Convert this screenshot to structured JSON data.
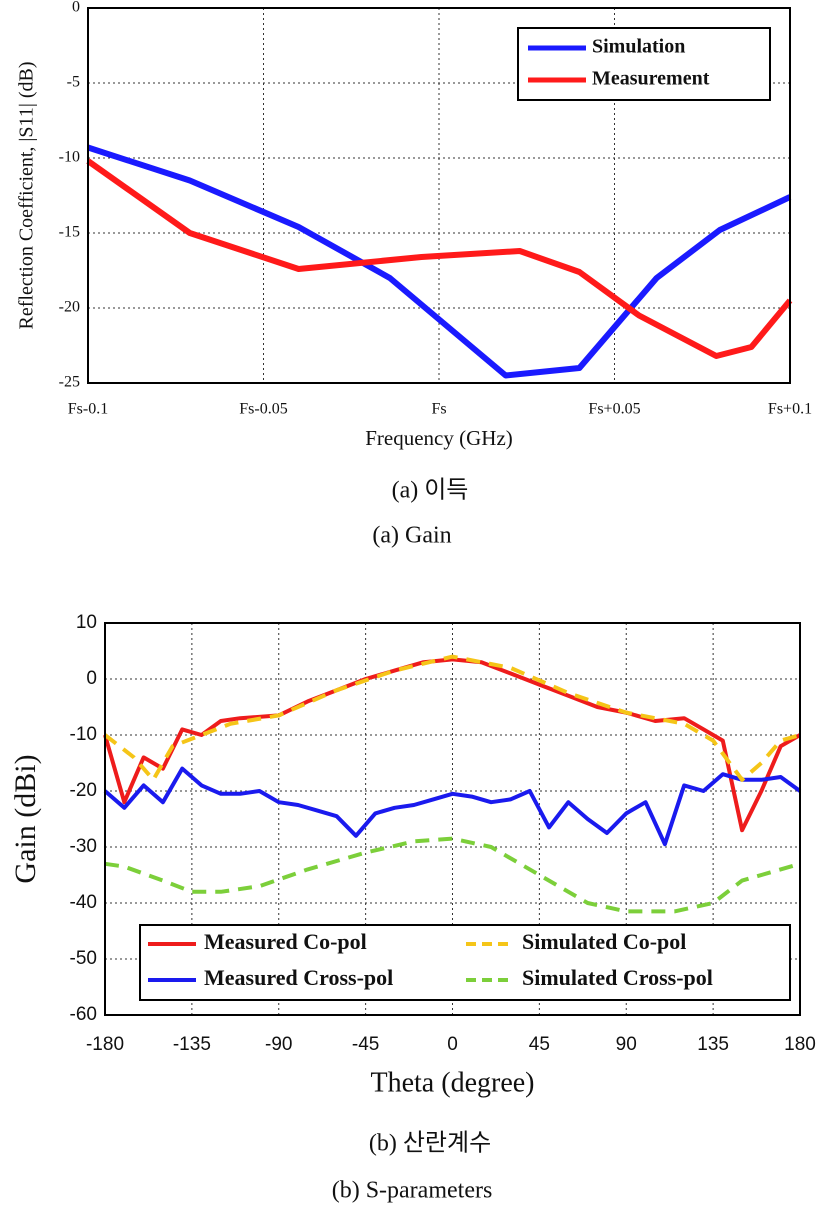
{
  "chart_data": [
    {
      "type": "line",
      "xlabel": "Frequency (GHz)",
      "ylabel": "Reflection Coefficient, |S11| (dB)",
      "xlim": [
        -0.1,
        0.1
      ],
      "xticks": [
        {
          "value": -0.1,
          "label": "Fs-0.1"
        },
        {
          "value": -0.05,
          "label": "Fs-0.05"
        },
        {
          "value": 0,
          "label": "Fs"
        },
        {
          "value": 0.05,
          "label": "Fs+0.05"
        },
        {
          "value": 0.1,
          "label": "Fs+0.1"
        }
      ],
      "ylim": [
        -25,
        0
      ],
      "yticks": [
        -25,
        -20,
        -15,
        -10,
        -5,
        0
      ],
      "grid": true,
      "legend": "upper right",
      "series": [
        {
          "name": "Simulation",
          "color": "#1a1aff",
          "x": [
            -0.1,
            -0.071,
            -0.04,
            -0.014,
            0.019,
            0.04,
            0.062,
            0.08,
            0.1
          ],
          "values": [
            -9.3,
            -11.5,
            -14.6,
            -18,
            -24.5,
            -24,
            -18,
            -14.8,
            -12.6
          ]
        },
        {
          "name": "Measurement",
          "color": "#ff1a1a",
          "x": [
            -0.1,
            -0.071,
            -0.04,
            -0.005,
            0.023,
            0.04,
            0.057,
            0.079,
            0.089,
            0.1
          ],
          "values": [
            -10.2,
            -15,
            -17.4,
            -16.6,
            -16.2,
            -17.6,
            -20.5,
            -23.2,
            -22.6,
            -19.5
          ]
        }
      ]
    },
    {
      "type": "line",
      "xlabel": "Theta (degree)",
      "ylabel": "Gain (dBi)",
      "xlim": [
        -180,
        180
      ],
      "xticks": [
        -180,
        -135,
        -90,
        -45,
        0,
        45,
        90,
        135,
        180
      ],
      "ylim": [
        -60,
        10
      ],
      "yticks": [
        -60,
        -50,
        -40,
        -30,
        -20,
        -10,
        0,
        10
      ],
      "grid": true,
      "legend": "lower center",
      "series": [
        {
          "name": "Measured Co-pol",
          "color": "#ee1c1c",
          "style": "solid",
          "x": [
            -180,
            -170,
            -160,
            -150,
            -140,
            -130,
            -120,
            -110,
            -90,
            -75,
            -60,
            -45,
            -30,
            -15,
            0,
            15,
            30,
            45,
            60,
            75,
            90,
            105,
            120,
            130,
            140,
            150,
            160,
            170,
            180
          ],
          "values": [
            -10,
            -22,
            -14,
            -16,
            -9,
            -10,
            -7.5,
            -7,
            -6.5,
            -4,
            -2,
            0,
            1.5,
            3,
            3.5,
            3,
            1,
            -1,
            -3,
            -5,
            -6,
            -7.5,
            -7,
            -9,
            -11,
            -27,
            -20,
            -12,
            -10
          ]
        },
        {
          "name": "Measured Cross-pol",
          "color": "#1a1aee",
          "style": "solid",
          "x": [
            -180,
            -170,
            -160,
            -150,
            -140,
            -130,
            -120,
            -110,
            -100,
            -90,
            -80,
            -70,
            -60,
            -50,
            -40,
            -30,
            -20,
            -10,
            0,
            10,
            20,
            30,
            40,
            50,
            60,
            70,
            80,
            90,
            100,
            110,
            120,
            130,
            140,
            150,
            160,
            170,
            180
          ],
          "values": [
            -20,
            -23,
            -19,
            -22,
            -16,
            -19,
            -20.5,
            -20.5,
            -20,
            -22,
            -22.5,
            -23.5,
            -24.5,
            -28,
            -24,
            -23,
            -22.5,
            -21.5,
            -20.5,
            -21,
            -22,
            -21.5,
            -20,
            -26.5,
            -22,
            -25,
            -27.5,
            -24,
            -22,
            -29.5,
            -19,
            -20,
            -17,
            -18,
            -18,
            -17.5,
            -20
          ]
        },
        {
          "name": "Simulated Co-pol",
          "color": "#f5c518",
          "style": "dashed",
          "x": [
            -180,
            -165,
            -155,
            -145,
            -130,
            -115,
            -90,
            -60,
            -30,
            0,
            30,
            60,
            90,
            120,
            135,
            150,
            160,
            170,
            180
          ],
          "values": [
            -10,
            -14,
            -18,
            -12,
            -10,
            -8,
            -6.5,
            -2,
            1.5,
            4,
            2,
            -2.5,
            -6,
            -8,
            -11,
            -18,
            -15,
            -11,
            -10
          ]
        },
        {
          "name": "Simulated Cross-pol",
          "color": "#7ccf3a",
          "style": "dashed",
          "x": [
            -180,
            -170,
            -150,
            -135,
            -120,
            -100,
            -75,
            -45,
            -20,
            0,
            20,
            45,
            70,
            90,
            115,
            135,
            150,
            180
          ],
          "values": [
            -33,
            -33.5,
            -36,
            -38,
            -38,
            -37,
            -34,
            -31,
            -29,
            -28.5,
            -30,
            -35,
            -40,
            -41.5,
            -41.5,
            -40,
            -36,
            -33
          ]
        }
      ]
    }
  ],
  "captions": [
    "(a)  이득",
    "(a)  Gain",
    "(b)  산란계수",
    "(b)  S-parameters"
  ]
}
